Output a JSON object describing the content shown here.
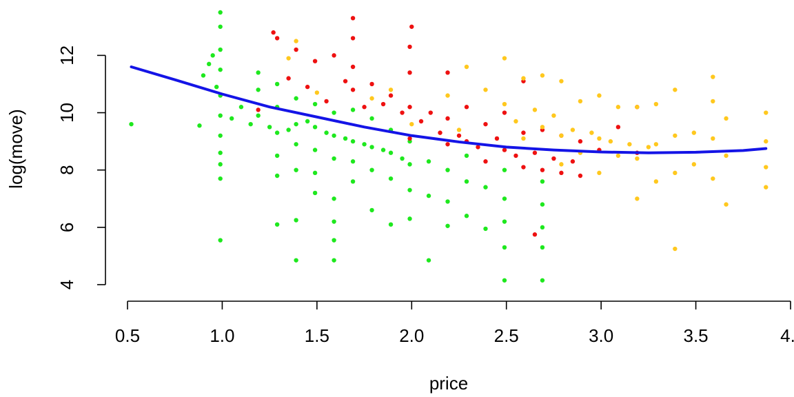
{
  "chart_data": {
    "type": "scatter",
    "title": "",
    "xlabel": "price",
    "ylabel": "log(move)",
    "xlim": [
      0.5,
      4.0
    ],
    "ylim": [
      4,
      13.5
    ],
    "x_ticks": [
      0.5,
      1.0,
      1.5,
      2.0,
      2.5,
      3.0,
      3.5,
      4.0
    ],
    "x_tick_labels": [
      "0.5",
      "1.0",
      "1.5",
      "2.0",
      "2.5",
      "3.0",
      "3.5",
      "4."
    ],
    "y_ticks": [
      4,
      6,
      8,
      10,
      12
    ],
    "y_tick_labels": [
      "4",
      "6",
      "8",
      "10",
      "12"
    ],
    "grid": false,
    "legend": "none",
    "colors": {
      "green": "#1ee81e",
      "red": "#ee1111",
      "gold": "#ffc81e",
      "fit": "#1414e6"
    },
    "series": [
      {
        "color": "#1ee81e",
        "points": [
          [
            0.52,
            9.6
          ],
          [
            0.88,
            9.55
          ],
          [
            0.9,
            11.3
          ],
          [
            0.93,
            11.7
          ],
          [
            0.95,
            12.0
          ],
          [
            0.97,
            10.9
          ],
          [
            0.99,
            13.5
          ],
          [
            0.99,
            13.0
          ],
          [
            0.99,
            12.2
          ],
          [
            0.99,
            11.5
          ],
          [
            0.99,
            10.6
          ],
          [
            0.99,
            9.9
          ],
          [
            0.99,
            9.2
          ],
          [
            0.99,
            8.6
          ],
          [
            0.99,
            8.2
          ],
          [
            0.99,
            7.7
          ],
          [
            0.99,
            5.55
          ],
          [
            1.05,
            9.8
          ],
          [
            1.1,
            10.2
          ],
          [
            1.15,
            9.6
          ],
          [
            1.19,
            11.4
          ],
          [
            1.19,
            10.8
          ],
          [
            1.19,
            9.9
          ],
          [
            1.25,
            9.5
          ],
          [
            1.29,
            11.0
          ],
          [
            1.29,
            10.2
          ],
          [
            1.29,
            9.3
          ],
          [
            1.29,
            8.5
          ],
          [
            1.29,
            7.8
          ],
          [
            1.29,
            6.1
          ],
          [
            1.35,
            9.4
          ],
          [
            1.39,
            10.5
          ],
          [
            1.39,
            9.6
          ],
          [
            1.39,
            8.9
          ],
          [
            1.39,
            8.0
          ],
          [
            1.39,
            6.25
          ],
          [
            1.39,
            4.85
          ],
          [
            1.45,
            9.7
          ],
          [
            1.49,
            10.3
          ],
          [
            1.49,
            9.5
          ],
          [
            1.49,
            8.7
          ],
          [
            1.49,
            7.9
          ],
          [
            1.49,
            7.2
          ],
          [
            1.55,
            9.3
          ],
          [
            1.59,
            10.0
          ],
          [
            1.59,
            9.2
          ],
          [
            1.59,
            8.4
          ],
          [
            1.59,
            7.0
          ],
          [
            1.59,
            6.2
          ],
          [
            1.59,
            5.55
          ],
          [
            1.59,
            4.85
          ],
          [
            1.65,
            9.1
          ],
          [
            1.69,
            10.1
          ],
          [
            1.69,
            9.0
          ],
          [
            1.69,
            8.3
          ],
          [
            1.69,
            7.6
          ],
          [
            1.75,
            8.9
          ],
          [
            1.79,
            9.8
          ],
          [
            1.79,
            8.8
          ],
          [
            1.79,
            8.0
          ],
          [
            1.79,
            6.6
          ],
          [
            1.85,
            8.7
          ],
          [
            1.89,
            9.4
          ],
          [
            1.89,
            8.6
          ],
          [
            1.89,
            7.7
          ],
          [
            1.89,
            6.1
          ],
          [
            1.95,
            8.4
          ],
          [
            1.99,
            9.0
          ],
          [
            1.99,
            8.2
          ],
          [
            1.99,
            7.3
          ],
          [
            1.99,
            6.3
          ],
          [
            2.09,
            8.3
          ],
          [
            2.09,
            7.1
          ],
          [
            2.09,
            4.85
          ],
          [
            2.19,
            8.0
          ],
          [
            2.19,
            6.9
          ],
          [
            2.19,
            6.05
          ],
          [
            2.29,
            8.5
          ],
          [
            2.29,
            7.6
          ],
          [
            2.29,
            6.4
          ],
          [
            2.39,
            7.4
          ],
          [
            2.39,
            5.95
          ],
          [
            2.49,
            8.0
          ],
          [
            2.49,
            7.0
          ],
          [
            2.49,
            6.2
          ],
          [
            2.49,
            5.3
          ],
          [
            2.49,
            4.15
          ],
          [
            2.69,
            7.6
          ],
          [
            2.69,
            6.8
          ],
          [
            2.69,
            6.0
          ],
          [
            2.69,
            5.3
          ],
          [
            2.69,
            4.15
          ]
        ]
      },
      {
        "color": "#ee1111",
        "points": [
          [
            1.19,
            10.1
          ],
          [
            1.27,
            12.8
          ],
          [
            1.29,
            12.6
          ],
          [
            1.35,
            11.2
          ],
          [
            1.39,
            12.2
          ],
          [
            1.45,
            10.9
          ],
          [
            1.49,
            11.8
          ],
          [
            1.55,
            10.4
          ],
          [
            1.59,
            12.0
          ],
          [
            1.65,
            11.1
          ],
          [
            1.69,
            13.3
          ],
          [
            1.69,
            12.6
          ],
          [
            1.69,
            11.6
          ],
          [
            1.69,
            10.8
          ],
          [
            1.75,
            10.2
          ],
          [
            1.79,
            11.0
          ],
          [
            1.85,
            10.3
          ],
          [
            1.89,
            10.6
          ],
          [
            1.95,
            10.0
          ],
          [
            1.99,
            12.3
          ],
          [
            1.99,
            11.4
          ],
          [
            1.99,
            10.2
          ],
          [
            1.99,
            9.1
          ],
          [
            2.0,
            13.0
          ],
          [
            2.05,
            9.7
          ],
          [
            2.1,
            10.0
          ],
          [
            2.15,
            9.3
          ],
          [
            2.19,
            11.4
          ],
          [
            2.19,
            9.8
          ],
          [
            2.19,
            8.9
          ],
          [
            2.25,
            9.2
          ],
          [
            2.29,
            10.2
          ],
          [
            2.29,
            9.0
          ],
          [
            2.35,
            8.8
          ],
          [
            2.39,
            9.6
          ],
          [
            2.39,
            8.3
          ],
          [
            2.45,
            9.1
          ],
          [
            2.49,
            10.0
          ],
          [
            2.49,
            8.7
          ],
          [
            2.55,
            8.5
          ],
          [
            2.59,
            11.1
          ],
          [
            2.59,
            9.3
          ],
          [
            2.59,
            8.1
          ],
          [
            2.65,
            8.6
          ],
          [
            2.69,
            9.4
          ],
          [
            2.69,
            8.0
          ],
          [
            2.75,
            8.4
          ],
          [
            2.79,
            9.2
          ],
          [
            2.79,
            7.9
          ],
          [
            2.85,
            8.3
          ],
          [
            2.89,
            9.0
          ],
          [
            2.89,
            7.8
          ],
          [
            2.99,
            8.7
          ],
          [
            3.09,
            9.5
          ],
          [
            3.19,
            10.2
          ],
          [
            3.19,
            8.6
          ],
          [
            2.65,
            5.75
          ]
        ]
      },
      {
        "color": "#ffc81e",
        "points": [
          [
            1.39,
            12.5
          ],
          [
            1.35,
            11.9
          ],
          [
            1.5,
            10.7
          ],
          [
            1.79,
            10.5
          ],
          [
            1.89,
            10.8
          ],
          [
            2.0,
            9.6
          ],
          [
            2.19,
            10.6
          ],
          [
            2.25,
            9.4
          ],
          [
            2.29,
            11.6
          ],
          [
            2.39,
            10.8
          ],
          [
            2.49,
            11.9
          ],
          [
            2.49,
            10.3
          ],
          [
            2.55,
            9.7
          ],
          [
            2.59,
            11.2
          ],
          [
            2.59,
            9.1
          ],
          [
            2.65,
            10.1
          ],
          [
            2.69,
            11.3
          ],
          [
            2.69,
            9.5
          ],
          [
            2.75,
            9.9
          ],
          [
            2.79,
            11.1
          ],
          [
            2.79,
            9.2
          ],
          [
            2.79,
            8.2
          ],
          [
            2.85,
            9.4
          ],
          [
            2.89,
            10.4
          ],
          [
            2.89,
            8.6
          ],
          [
            2.95,
            9.3
          ],
          [
            2.99,
            10.6
          ],
          [
            2.99,
            9.1
          ],
          [
            2.99,
            7.9
          ],
          [
            3.05,
            9.0
          ],
          [
            3.09,
            10.2
          ],
          [
            3.09,
            8.5
          ],
          [
            3.15,
            8.9
          ],
          [
            3.19,
            10.2
          ],
          [
            3.19,
            8.4
          ],
          [
            3.19,
            7.0
          ],
          [
            3.25,
            8.8
          ],
          [
            3.29,
            10.3
          ],
          [
            3.29,
            8.9
          ],
          [
            3.29,
            7.6
          ],
          [
            3.39,
            10.8
          ],
          [
            3.39,
            9.2
          ],
          [
            3.39,
            7.9
          ],
          [
            3.39,
            5.25
          ],
          [
            3.49,
            9.3
          ],
          [
            3.49,
            8.2
          ],
          [
            3.59,
            11.25
          ],
          [
            3.59,
            10.4
          ],
          [
            3.59,
            9.1
          ],
          [
            3.59,
            7.7
          ],
          [
            3.66,
            9.8
          ],
          [
            3.66,
            8.5
          ],
          [
            3.66,
            6.8
          ],
          [
            3.87,
            10.0
          ],
          [
            3.87,
            9.0
          ],
          [
            3.87,
            8.1
          ],
          [
            3.87,
            7.4
          ]
        ]
      }
    ],
    "fit_line": {
      "color": "#1414e6",
      "x": [
        0.52,
        0.75,
        1.0,
        1.25,
        1.5,
        1.75,
        2.0,
        2.25,
        2.5,
        2.75,
        3.0,
        3.25,
        3.5,
        3.75,
        3.87
      ],
      "y": [
        11.6,
        11.15,
        10.65,
        10.2,
        9.85,
        9.5,
        9.2,
        8.98,
        8.8,
        8.7,
        8.63,
        8.6,
        8.62,
        8.68,
        8.75
      ]
    }
  }
}
